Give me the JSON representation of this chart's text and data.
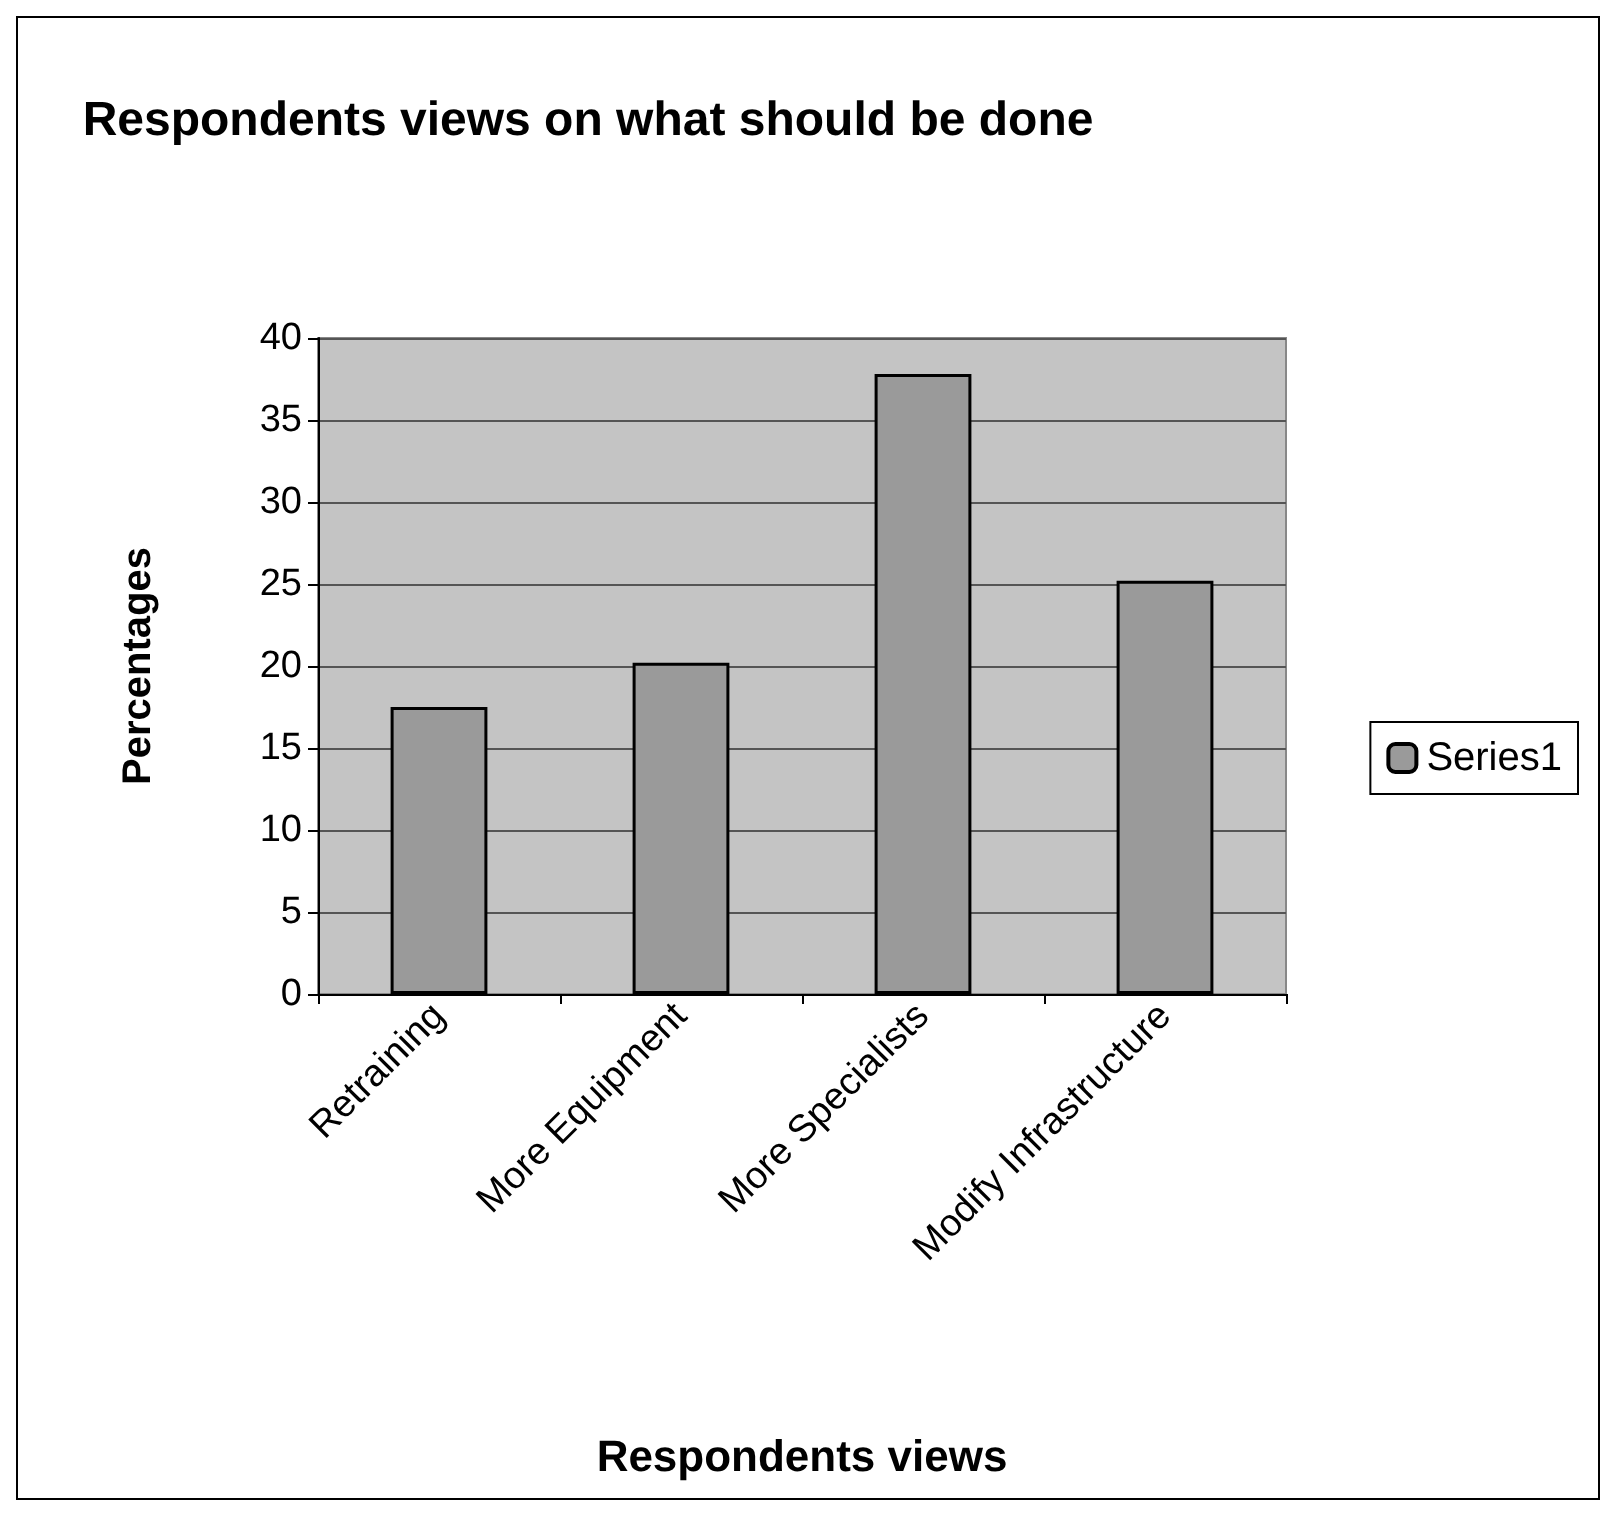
{
  "chart_data": {
    "type": "bar",
    "title": "Respondents views on what should be done",
    "xlabel": "Respondents views",
    "ylabel": "Percentages",
    "categories": [
      "Retraining",
      "More Equipment",
      "More Specialists",
      "Modify Infrastructure"
    ],
    "series": [
      {
        "name": "Series1",
        "color": "#9a9a9a",
        "values": [
          17.5,
          20.2,
          37.8,
          25.2
        ]
      }
    ],
    "ylim": [
      0,
      40
    ],
    "yticks": [
      0,
      5,
      10,
      15,
      20,
      25,
      30,
      35,
      40
    ],
    "grid": "y",
    "legend": "right"
  }
}
